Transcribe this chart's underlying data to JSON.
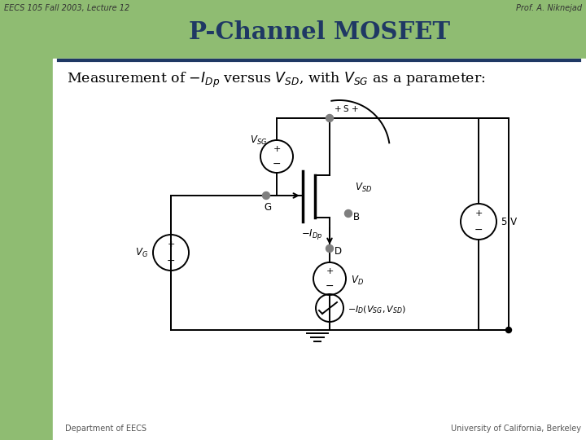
{
  "title": "P-Channel MOSFET",
  "header_left": "EECS 105 Fall 2003, Lecture 12",
  "header_right": "Prof. A. Niknejad",
  "footer_left": "Department of EECS",
  "footer_right": "University of California, Berkeley",
  "bg_color_left": "#8fbc72",
  "bg_color_main": "#ffffff",
  "title_color": "#1f3864",
  "separator_color": "#1f3864",
  "header_text_color": "#333333",
  "footer_text_color": "#555555"
}
